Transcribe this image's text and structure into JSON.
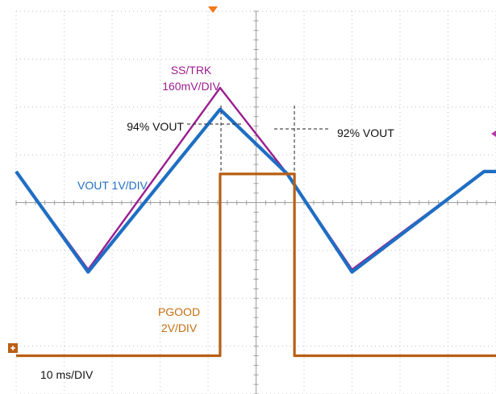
{
  "chart_data": {
    "type": "line",
    "title": "",
    "time_scale": "10 ms/DIV",
    "grid": true,
    "divisions": {
      "x": 10,
      "y": 8
    },
    "x_unit": "ms",
    "x": [
      0,
      15,
      42.5,
      56.5,
      70,
      97.5,
      100
    ],
    "series": [
      {
        "name": "SS/TRK",
        "scale": "160mV/DIV",
        "color": "#9b1d8f",
        "values_div": [
          4.65,
          2.6,
          6.4,
          4.6,
          2.6,
          4.65,
          4.65
        ]
      },
      {
        "name": "VOUT",
        "scale": "1V/DIV",
        "color": "#1f6ec4",
        "values_div": [
          4.65,
          2.55,
          5.95,
          4.6,
          2.55,
          4.65,
          4.65
        ]
      },
      {
        "name": "PGOOD",
        "scale": "2V/DIV",
        "color": "#b85f13",
        "x_steps": [
          0,
          42.5,
          42.5,
          58,
          58,
          100
        ],
        "values_div": [
          0.8,
          0.8,
          4.6,
          4.6,
          0.8,
          0.8
        ]
      }
    ],
    "annotations": [
      {
        "text": "94% VOUT"
      },
      {
        "text": "92% VOUT"
      }
    ]
  },
  "labels": {
    "sstrk_line1": "SS/TRK",
    "sstrk_line2": "160mV/DIV",
    "vout": "VOUT 1V/DIV",
    "pgood_line1": "PGOOD",
    "pgood_line2": "2V/DIV",
    "ann_94": "94% VOUT",
    "ann_92": "92% VOUT",
    "timebase": "10 ms/DIV"
  }
}
